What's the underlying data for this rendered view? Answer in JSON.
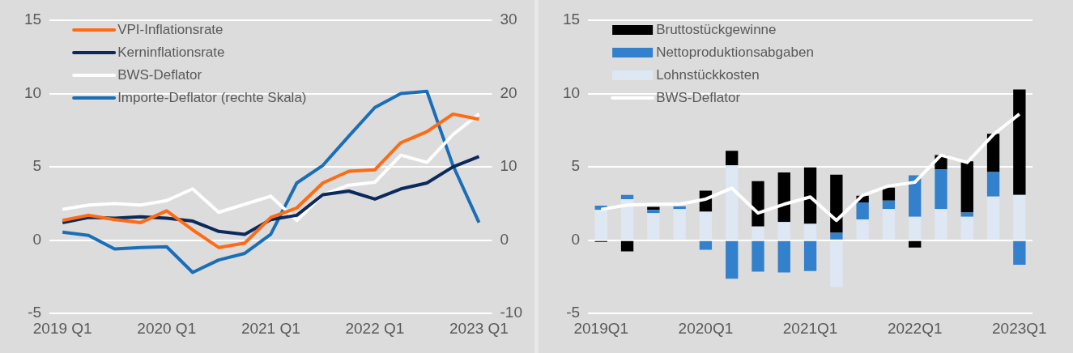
{
  "chart_data": [
    {
      "type": "line",
      "categories": [
        "2019 Q1",
        null,
        null,
        null,
        "2020 Q1",
        null,
        null,
        null,
        "2021 Q1",
        null,
        null,
        null,
        "2022 Q1",
        null,
        null,
        null,
        "2023 Q1"
      ],
      "series": [
        {
          "name": "VPI-Inflationsrate",
          "color": "#ff6a13",
          "values": [
            1.35,
            1.7,
            1.4,
            1.2,
            2.0,
            0.7,
            -0.5,
            -0.2,
            1.55,
            2.2,
            3.9,
            4.7,
            4.8,
            6.65,
            7.4,
            8.6,
            8.25
          ]
        },
        {
          "name": "Kerninflationsrate",
          "color": "#0b2a5b",
          "values": [
            1.2,
            1.55,
            1.5,
            1.6,
            1.5,
            1.3,
            0.6,
            0.4,
            1.4,
            1.7,
            3.1,
            3.35,
            2.8,
            3.5,
            3.9,
            5.0,
            5.7
          ]
        },
        {
          "name": "BWS-Deflator",
          "color": "#ffffff",
          "values": [
            2.1,
            2.4,
            2.5,
            2.4,
            2.7,
            3.5,
            1.9,
            2.45,
            3.0,
            1.35,
            3.1,
            3.75,
            3.95,
            5.8,
            5.3,
            7.2,
            8.6
          ]
        },
        {
          "name": "Importe-Deflator (rechte Skala)",
          "color": "#1a6eb8",
          "axis": "y2",
          "values": [
            1.1,
            0.65,
            -1.2,
            -1.0,
            -0.9,
            -4.4,
            -2.7,
            -1.8,
            0.8,
            7.8,
            10.2,
            14.2,
            18.1,
            20.0,
            20.3,
            10.2,
            2.4
          ]
        }
      ],
      "ylim": [
        -5,
        15
      ],
      "yticks": [
        -5,
        0,
        5,
        10,
        15
      ],
      "y2lim": [
        -10,
        30
      ],
      "y2ticks": [
        -10,
        0,
        10,
        20,
        30
      ],
      "grid": "y",
      "legend": "top left"
    },
    {
      "type": "bar",
      "stacked": true,
      "categories": [
        "2019Q1",
        null,
        null,
        null,
        "2020Q1",
        null,
        null,
        null,
        "2021Q1",
        null,
        null,
        null,
        "2022Q1",
        null,
        null,
        null,
        "2023Q1"
      ],
      "series": [
        {
          "name": "Lohnstückkosten",
          "color": "#dde8f4",
          "values": [
            2.07,
            2.8,
            1.84,
            2.12,
            1.94,
            5.1,
            0.93,
            1.24,
            1.11,
            -3.2,
            1.41,
            2.12,
            1.59,
            2.12,
            1.59,
            2.98,
            3.08
          ]
        },
        {
          "name": "Nettoproduktionsabgaben",
          "color": "#3380cc",
          "values": [
            0.28,
            0.28,
            0.23,
            0.2,
            -0.66,
            -2.63,
            -2.15,
            -2.2,
            -2.1,
            0.5,
            1.17,
            0.58,
            2.83,
            2.7,
            0.3,
            1.67,
            -1.67
          ]
        },
        {
          "name": "Bruttostückgewinne",
          "color": "#000000",
          "values": [
            -0.12,
            -0.76,
            0.2,
            0,
            1.44,
            0.99,
            3.09,
            3.38,
            3.86,
            3.97,
            0.45,
            0.89,
            -0.5,
            0.99,
            3.49,
            2.6,
            7.2
          ]
        },
        {
          "name": "BWS-Deflator",
          "type": "line",
          "color": "#ffffff",
          "values": [
            2.1,
            2.4,
            2.45,
            2.45,
            2.8,
            3.55,
            1.85,
            2.45,
            2.95,
            1.35,
            3.05,
            3.7,
            3.95,
            5.8,
            5.3,
            7.2,
            8.6
          ]
        }
      ],
      "ylim": [
        -5,
        15
      ],
      "yticks": [
        -5,
        0,
        5,
        10,
        15
      ],
      "grid": "y",
      "legend": "top left"
    }
  ]
}
